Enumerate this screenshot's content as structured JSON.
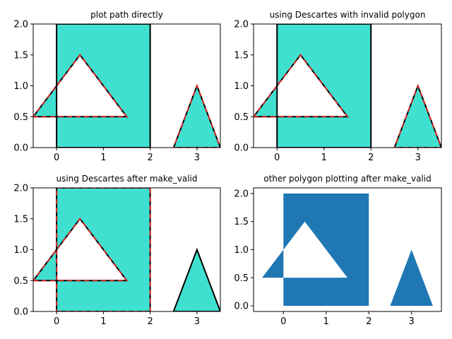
{
  "figure": {
    "background": "#ffffff"
  },
  "colors": {
    "fill": "#40e0d0",
    "edge": "#000000",
    "dash": "#d62728",
    "plain_fill": "#1f77b4"
  },
  "chart_data": [
    {
      "type": "area",
      "panel": "top-left",
      "title": "plot path directly",
      "xlim": [
        -0.5,
        3.5
      ],
      "ylim": [
        0,
        2
      ],
      "xticks": [
        0,
        1,
        2,
        3
      ],
      "xtick_labels": [
        "0",
        "1",
        "2",
        "3"
      ],
      "yticks": [
        0,
        0.5,
        1,
        1.5,
        2
      ],
      "ytick_labels": [
        "0.0",
        "0.5",
        "1.0",
        "1.5",
        "2.0"
      ],
      "grid": false,
      "style": "filled-with-outline",
      "fill_rule": "evenodd",
      "shapes": [
        {
          "name": "rectangle",
          "points": [
            [
              0,
              0
            ],
            [
              2,
              0
            ],
            [
              2,
              2
            ],
            [
              0,
              2
            ]
          ],
          "outline": "solid"
        },
        {
          "name": "left-triangle",
          "points": [
            [
              -0.5,
              0.5
            ],
            [
              1.5,
              0.5
            ],
            [
              0.5,
              1.5
            ]
          ],
          "outline": "red-dashed"
        },
        {
          "name": "right-triangle",
          "points": [
            [
              2.5,
              0
            ],
            [
              3.5,
              0
            ],
            [
              3,
              1
            ]
          ],
          "outline": "red-dashed"
        }
      ]
    },
    {
      "type": "area",
      "panel": "top-right",
      "title": "using Descartes with invalid polygon",
      "xlim": [
        -0.5,
        3.5
      ],
      "ylim": [
        0,
        2
      ],
      "xticks": [
        0,
        1,
        2,
        3
      ],
      "xtick_labels": [
        "0",
        "1",
        "2",
        "3"
      ],
      "yticks": [
        0,
        0.5,
        1,
        1.5,
        2
      ],
      "ytick_labels": [
        "0.0",
        "0.5",
        "1.0",
        "1.5",
        "2.0"
      ],
      "grid": false,
      "style": "filled-with-outline",
      "fill_rule": "evenodd",
      "shapes": [
        {
          "name": "rectangle",
          "points": [
            [
              0,
              0
            ],
            [
              2,
              0
            ],
            [
              2,
              2
            ],
            [
              0,
              2
            ]
          ],
          "outline": "solid"
        },
        {
          "name": "left-triangle",
          "points": [
            [
              -0.5,
              0.5
            ],
            [
              1.5,
              0.5
            ],
            [
              0.5,
              1.5
            ]
          ],
          "outline": "red-dashed"
        },
        {
          "name": "right-triangle",
          "points": [
            [
              2.5,
              0
            ],
            [
              3.5,
              0
            ],
            [
              3,
              1
            ]
          ],
          "outline": "red-dashed"
        }
      ]
    },
    {
      "type": "area",
      "panel": "bottom-left",
      "title": "using Descartes after make_valid",
      "xlim": [
        -0.5,
        3.5
      ],
      "ylim": [
        0,
        2
      ],
      "xticks": [
        0,
        1,
        2,
        3
      ],
      "xtick_labels": [
        "0",
        "1",
        "2",
        "3"
      ],
      "yticks": [
        0,
        0.5,
        1,
        1.5,
        2
      ],
      "ytick_labels": [
        "0.0",
        "0.5",
        "1.0",
        "1.5",
        "2.0"
      ],
      "grid": false,
      "style": "filled-with-outline",
      "fill_rule": "evenodd",
      "shapes": [
        {
          "name": "rectangle",
          "points": [
            [
              0,
              0
            ],
            [
              2,
              0
            ],
            [
              2,
              2
            ],
            [
              0,
              2
            ]
          ],
          "outline": "red-dashed"
        },
        {
          "name": "left-triangle",
          "points": [
            [
              -0.5,
              0.5
            ],
            [
              1.5,
              0.5
            ],
            [
              0.5,
              1.5
            ]
          ],
          "outline": "red-dashed"
        },
        {
          "name": "right-triangle",
          "points": [
            [
              2.5,
              0
            ],
            [
              3.5,
              0
            ],
            [
              3,
              1
            ]
          ],
          "outline": "solid"
        }
      ]
    },
    {
      "type": "area",
      "panel": "bottom-right",
      "title": "other polygon plotting after make_valid",
      "xlim": [
        -0.7,
        3.7
      ],
      "ylim": [
        -0.1,
        2.1
      ],
      "xticks": [
        0,
        1,
        2,
        3
      ],
      "xtick_labels": [
        "0",
        "1",
        "2",
        "3"
      ],
      "yticks": [
        0,
        0.5,
        1,
        1.5,
        2
      ],
      "ytick_labels": [
        "0.0",
        "0.5",
        "1.0",
        "1.5",
        "2.0"
      ],
      "grid": false,
      "style": "plain-fill",
      "fill_rule": "evenodd",
      "shapes": [
        {
          "name": "rectangle",
          "points": [
            [
              0,
              0
            ],
            [
              2,
              0
            ],
            [
              2,
              2
            ],
            [
              0,
              2
            ]
          ],
          "outline": "none"
        },
        {
          "name": "left-triangle",
          "points": [
            [
              -0.5,
              0.5
            ],
            [
              1.5,
              0.5
            ],
            [
              0.5,
              1.5
            ]
          ],
          "outline": "none"
        },
        {
          "name": "right-triangle",
          "points": [
            [
              2.5,
              0
            ],
            [
              3.5,
              0
            ],
            [
              3,
              1
            ]
          ],
          "outline": "none"
        }
      ]
    }
  ]
}
